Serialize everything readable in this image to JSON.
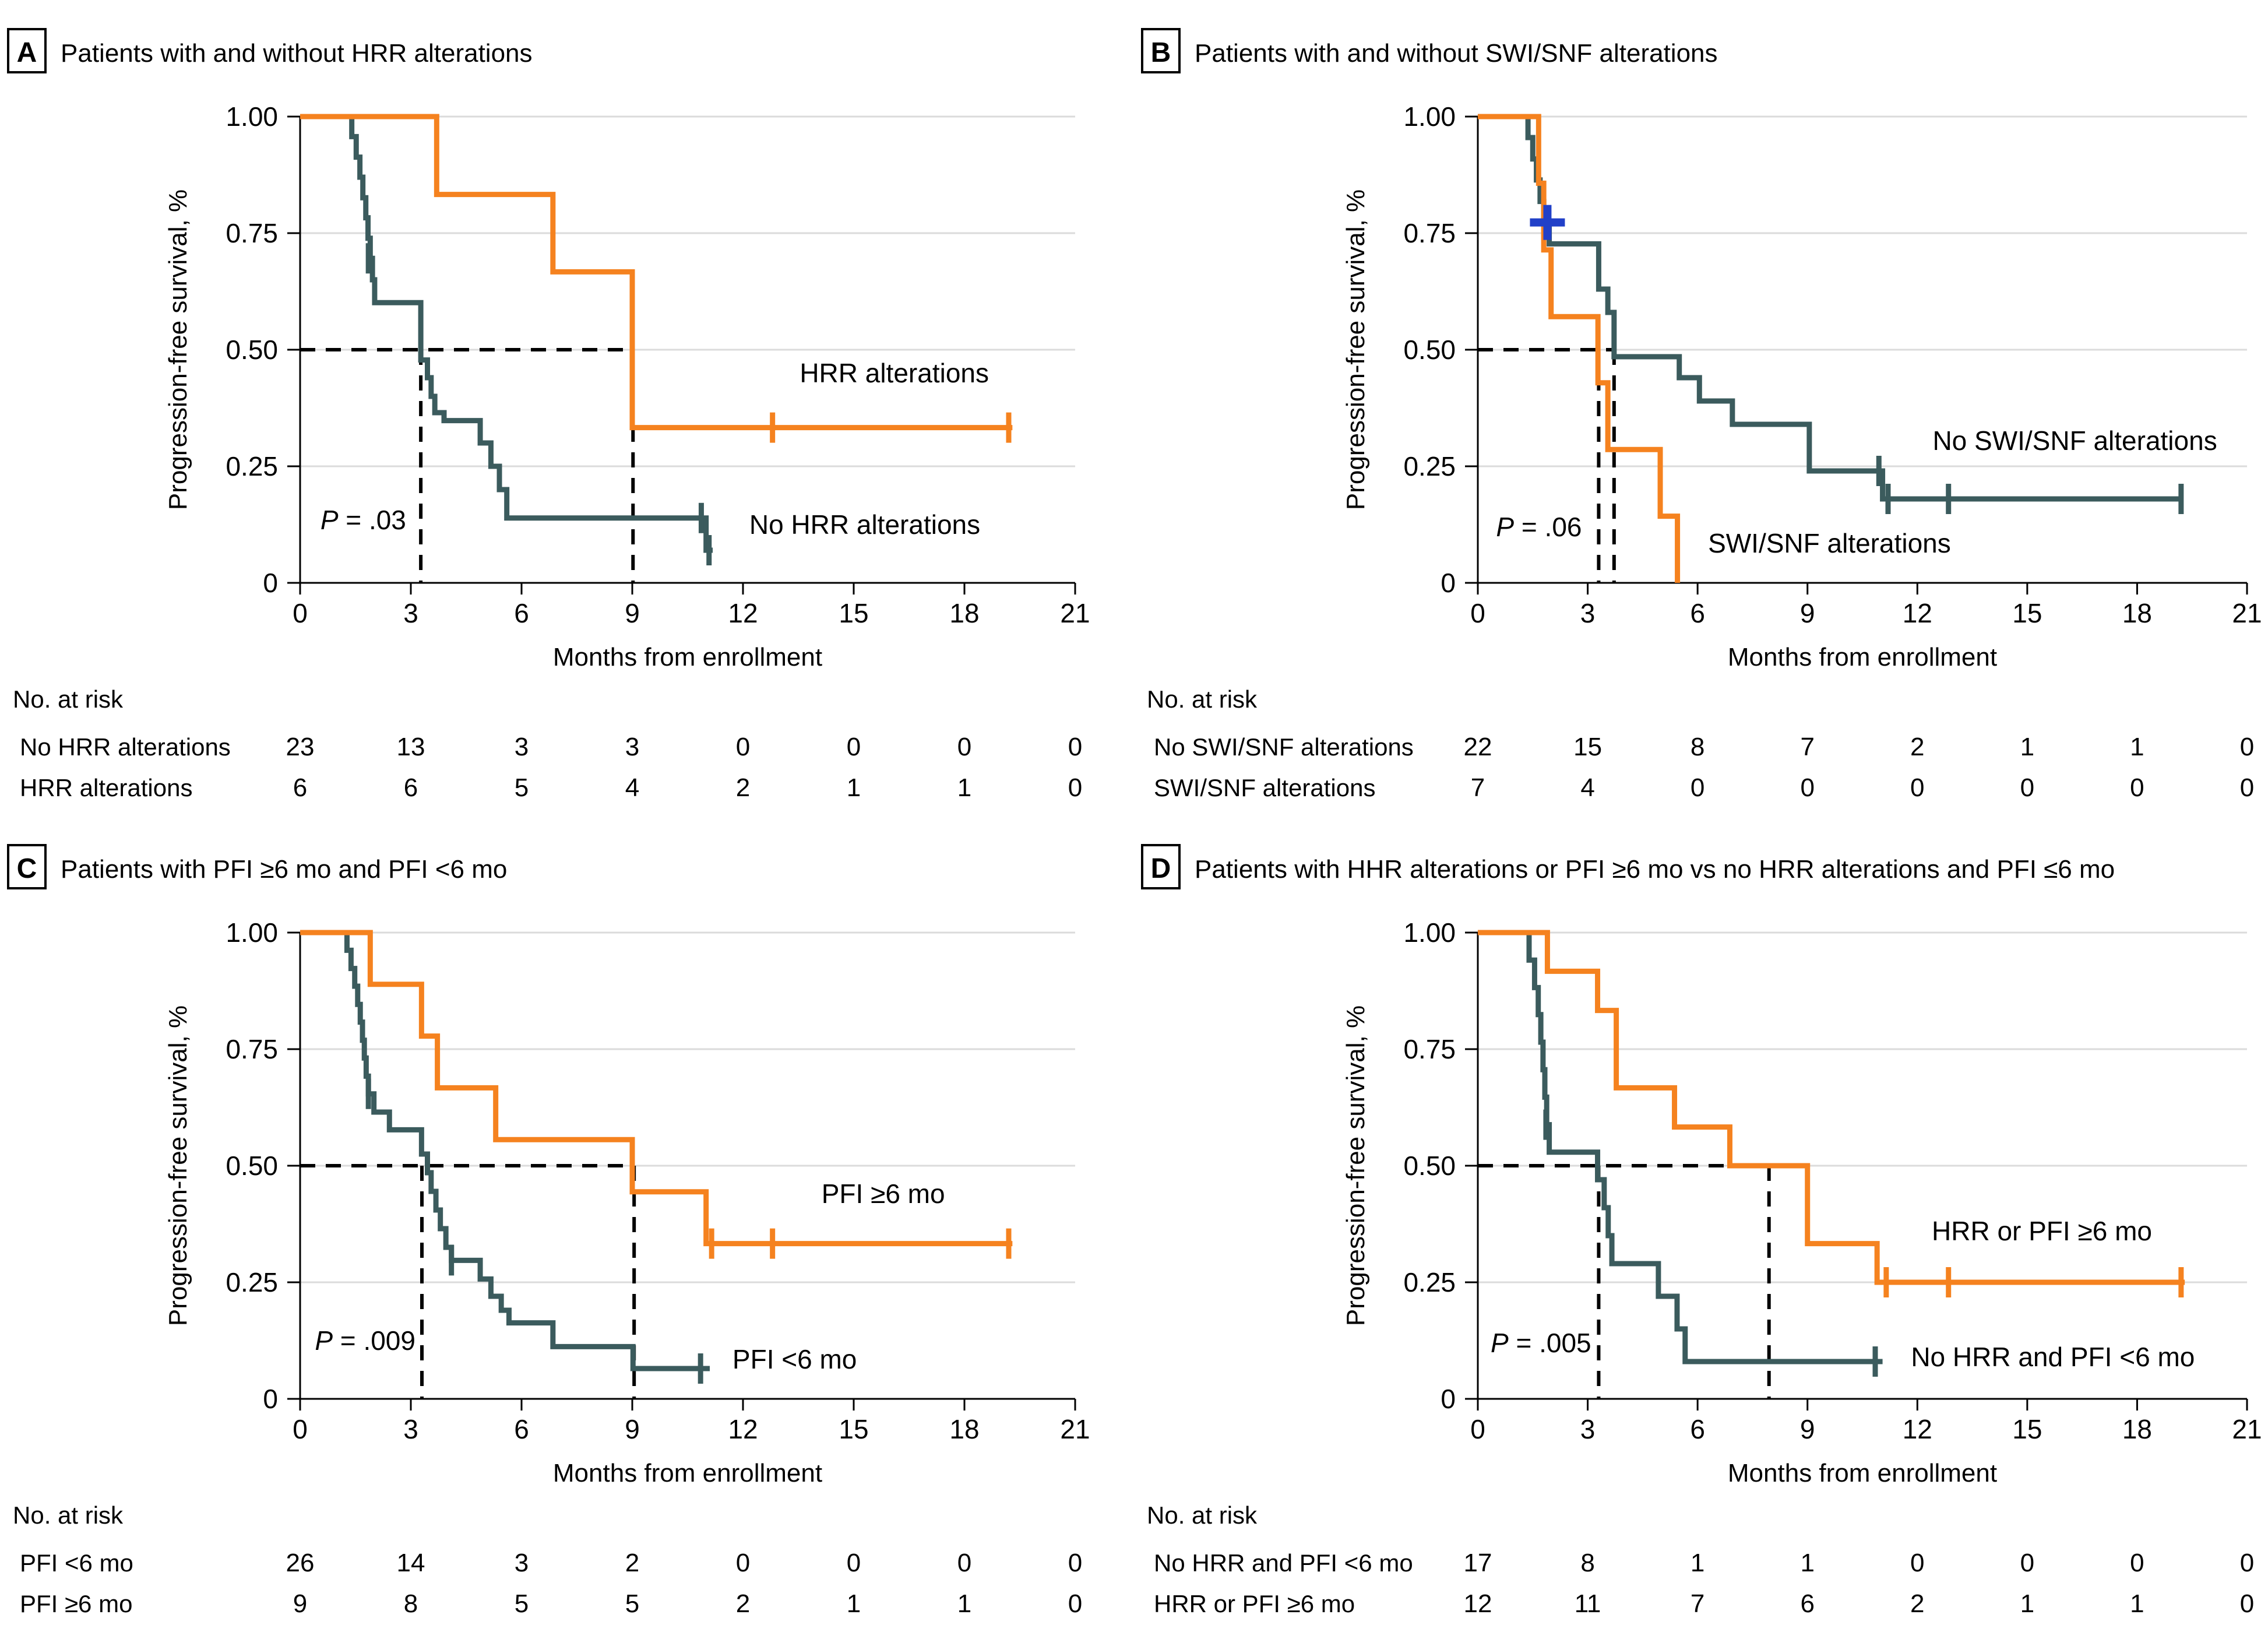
{
  "figure": {
    "background": "#ffffff",
    "colors": {
      "orange": "#F5821F",
      "teal": "#3B5B5D",
      "censor_blue": "#2140C8",
      "grid": "#DBDBDB",
      "axis": "#000000",
      "dashed": "#000000"
    },
    "axis": {
      "xlabel": "Months from enrollment",
      "ylabel": "Progression-free survival, %",
      "xticks": [
        0,
        3,
        6,
        9,
        12,
        15,
        18,
        21
      ],
      "yticks": [
        "0",
        "0.25",
        "0.50",
        "0.75",
        "1.00"
      ],
      "ytick_values": [
        0,
        0.25,
        0.5,
        0.75,
        1
      ],
      "xmax": 21
    },
    "risk_header": "No. at risk"
  },
  "chart_data": [
    {
      "type": "line",
      "panel_label": "A",
      "title": "Patients with and without HRR alterations",
      "p": {
        "symbol": "P",
        "rest": " = .03"
      },
      "p_pos": {
        "x": 0.55,
        "y": 0.115
      },
      "dashed": {
        "y": 0.5,
        "h_to": 9.02,
        "verticals": [
          3.27,
          9.02
        ]
      },
      "series": [
        {
          "name": "No HRR alterations",
          "color_key": "teal",
          "label_pos": {
            "x": 15.3,
            "y": 0.105
          },
          "steps": [
            [
              0,
              1
            ],
            [
              1.4,
              0.957
            ],
            [
              1.52,
              0.913
            ],
            [
              1.62,
              0.87
            ],
            [
              1.7,
              0.826
            ],
            [
              1.78,
              0.783
            ],
            [
              1.84,
              0.739
            ],
            [
              1.9,
              0.696
            ],
            [
              1.96,
              0.65
            ],
            [
              2.02,
              0.601
            ],
            [
              3.27,
              0.478
            ],
            [
              3.45,
              0.44
            ],
            [
              3.55,
              0.4
            ],
            [
              3.65,
              0.365
            ],
            [
              3.9,
              0.348
            ],
            [
              4.88,
              0.3
            ],
            [
              5.17,
              0.25
            ],
            [
              5.4,
              0.2
            ],
            [
              5.6,
              0.139
            ],
            [
              11.0,
              0.07
            ]
          ],
          "end_x": 11.18,
          "censors": [
            [
              1.85,
              0.696
            ],
            [
              10.87,
              0.139
            ],
            [
              11.08,
              0.07
            ]
          ]
        },
        {
          "name": "HRR alterations",
          "color_key": "orange",
          "label_pos": {
            "x": 16.1,
            "y": 0.43
          },
          "steps": [
            [
              0,
              1
            ],
            [
              3.7,
              0.833
            ],
            [
              6.85,
              0.667
            ],
            [
              9.0,
              0.333
            ]
          ],
          "end_x": 19.3,
          "censors": [
            [
              12.8,
              0.333
            ],
            [
              19.2,
              0.333
            ]
          ]
        }
      ],
      "risk_rows": [
        {
          "label": "No HRR alterations",
          "values": [
            23,
            13,
            3,
            3,
            0,
            0,
            0,
            0
          ]
        },
        {
          "label": "HRR alterations",
          "values": [
            6,
            6,
            5,
            4,
            2,
            1,
            1,
            0
          ]
        }
      ]
    },
    {
      "type": "line",
      "panel_label": "B",
      "title": "Patients with and without SWI/SNF alterations",
      "p": {
        "symbol": "P",
        "rest": " = .06"
      },
      "p_pos": {
        "x": 0.5,
        "y": 0.1
      },
      "dashed": {
        "y": 0.5,
        "h_to": 3.72,
        "verticals": [
          3.3,
          3.72
        ]
      },
      "series": [
        {
          "name": "No SWI/SNF alterations",
          "color_key": "teal",
          "label_pos": {
            "x": 16.3,
            "y": 0.285
          },
          "steps": [
            [
              0,
              1
            ],
            [
              1.37,
              0.955
            ],
            [
              1.5,
              0.909
            ],
            [
              1.6,
              0.864
            ],
            [
              1.7,
              0.818
            ],
            [
              1.8,
              0.773
            ],
            [
              1.95,
              0.727
            ],
            [
              3.3,
              0.63
            ],
            [
              3.55,
              0.58
            ],
            [
              3.72,
              0.485
            ],
            [
              5.5,
              0.44
            ],
            [
              6.05,
              0.39
            ],
            [
              6.95,
              0.34
            ],
            [
              9.05,
              0.24
            ],
            [
              11.05,
              0.18
            ]
          ],
          "end_x": 19.25,
          "censors": [
            [
              1.9,
              0.773,
              "blue"
            ],
            [
              10.95,
              0.24
            ],
            [
              11.2,
              0.18
            ],
            [
              12.85,
              0.18
            ],
            [
              19.2,
              0.18
            ]
          ]
        },
        {
          "name": "SWI/SNF alterations",
          "color_key": "orange",
          "label_pos": {
            "x": 9.6,
            "y": 0.065
          },
          "steps": [
            [
              0,
              1
            ],
            [
              1.66,
              0.857
            ],
            [
              1.8,
              0.714
            ],
            [
              2.0,
              0.571
            ],
            [
              3.28,
              0.429
            ],
            [
              3.55,
              0.286
            ],
            [
              4.98,
              0.143
            ],
            [
              5.45,
              0
            ]
          ],
          "end_x": 5.45,
          "censors": []
        }
      ],
      "risk_rows": [
        {
          "label": "No SWI/SNF alterations",
          "values": [
            22,
            15,
            8,
            7,
            2,
            1,
            1,
            0
          ]
        },
        {
          "label": "SWI/SNF alterations",
          "values": [
            7,
            4,
            0,
            0,
            0,
            0,
            0,
            0
          ]
        }
      ]
    },
    {
      "type": "line",
      "panel_label": "C",
      "title": "Patients with PFI ≥6 mo and PFI <6 mo",
      "p": {
        "symbol": "P",
        "rest": " = .009"
      },
      "p_pos": {
        "x": 0.4,
        "y": 0.105
      },
      "dashed": {
        "y": 0.5,
        "h_to": 9.05,
        "verticals": [
          3.3,
          9.05
        ]
      },
      "series": [
        {
          "name": "PFI <6 mo",
          "color_key": "teal",
          "label_pos": {
            "x": 13.4,
            "y": 0.065
          },
          "steps": [
            [
              0,
              1
            ],
            [
              1.27,
              0.962
            ],
            [
              1.38,
              0.923
            ],
            [
              1.48,
              0.885
            ],
            [
              1.56,
              0.846
            ],
            [
              1.63,
              0.808
            ],
            [
              1.69,
              0.769
            ],
            [
              1.74,
              0.731
            ],
            [
              1.79,
              0.692
            ],
            [
              1.85,
              0.654
            ],
            [
              2.0,
              0.615
            ],
            [
              2.42,
              0.577
            ],
            [
              3.29,
              0.525
            ],
            [
              3.45,
              0.485
            ],
            [
              3.55,
              0.445
            ],
            [
              3.68,
              0.405
            ],
            [
              3.8,
              0.365
            ],
            [
              3.95,
              0.325
            ],
            [
              4.1,
              0.297
            ],
            [
              4.88,
              0.257
            ],
            [
              5.17,
              0.22
            ],
            [
              5.45,
              0.19
            ],
            [
              5.66,
              0.163
            ],
            [
              6.85,
              0.112
            ],
            [
              9.02,
              0.065
            ]
          ],
          "end_x": 11.1,
          "censors": [
            [
              1.85,
              0.654
            ],
            [
              4.1,
              0.297
            ],
            [
              10.85,
              0.065
            ]
          ]
        },
        {
          "name": "PFI ≥6 mo",
          "color_key": "orange",
          "label_pos": {
            "x": 15.8,
            "y": 0.42
          },
          "steps": [
            [
              0,
              1
            ],
            [
              1.9,
              0.889
            ],
            [
              3.29,
              0.778
            ],
            [
              3.72,
              0.667
            ],
            [
              5.3,
              0.556
            ],
            [
              9.0,
              0.444
            ],
            [
              11.0,
              0.333
            ]
          ],
          "end_x": 19.3,
          "censors": [
            [
              11.15,
              0.333
            ],
            [
              12.8,
              0.333
            ],
            [
              19.2,
              0.333
            ]
          ]
        }
      ],
      "risk_rows": [
        {
          "label": "PFI <6 mo",
          "values": [
            26,
            14,
            3,
            2,
            0,
            0,
            0,
            0
          ]
        },
        {
          "label": "PFI ≥6 mo",
          "values": [
            9,
            8,
            5,
            5,
            2,
            1,
            1,
            0
          ]
        }
      ]
    },
    {
      "type": "line",
      "panel_label": "D",
      "title": "Patients with HHR alterations or PFI ≥6 mo vs no HRR alterations and PFI ≤6 mo",
      "p": {
        "symbol": "P",
        "rest": " = .005"
      },
      "p_pos": {
        "x": 0.35,
        "y": 0.1
      },
      "dashed": {
        "y": 0.5,
        "h_to": 7.95,
        "verticals": [
          3.3,
          7.95
        ]
      },
      "series": [
        {
          "name": "No HRR and PFI <6 mo",
          "color_key": "teal",
          "label_pos": {
            "x": 15.7,
            "y": 0.07
          },
          "steps": [
            [
              0,
              1
            ],
            [
              1.4,
              0.941
            ],
            [
              1.55,
              0.882
            ],
            [
              1.65,
              0.824
            ],
            [
              1.72,
              0.765
            ],
            [
              1.78,
              0.706
            ],
            [
              1.83,
              0.647
            ],
            [
              1.88,
              0.588
            ],
            [
              1.95,
              0.529
            ],
            [
              3.27,
              0.47
            ],
            [
              3.45,
              0.41
            ],
            [
              3.56,
              0.35
            ],
            [
              3.66,
              0.29
            ],
            [
              4.93,
              0.22
            ],
            [
              5.44,
              0.15
            ],
            [
              5.66,
              0.08
            ]
          ],
          "end_x": 11.05,
          "censors": [
            [
              1.86,
              0.588
            ],
            [
              10.85,
              0.08
            ]
          ]
        },
        {
          "name": "HRR or PFI ≥6 mo",
          "color_key": "orange",
          "label_pos": {
            "x": 15.4,
            "y": 0.34
          },
          "steps": [
            [
              0,
              1
            ],
            [
              1.9,
              0.917
            ],
            [
              3.27,
              0.833
            ],
            [
              3.78,
              0.667
            ],
            [
              5.37,
              0.583
            ],
            [
              6.88,
              0.5
            ],
            [
              9.0,
              0.333
            ],
            [
              10.9,
              0.25
            ]
          ],
          "end_x": 19.3,
          "censors": [
            [
              11.15,
              0.25
            ],
            [
              12.85,
              0.25
            ],
            [
              19.2,
              0.25
            ]
          ]
        }
      ],
      "risk_rows": [
        {
          "label": "No HRR and PFI <6 mo",
          "values": [
            17,
            8,
            1,
            1,
            0,
            0,
            0,
            0
          ]
        },
        {
          "label": "HRR or PFI ≥6 mo",
          "values": [
            12,
            11,
            7,
            6,
            2,
            1,
            1,
            0
          ]
        }
      ]
    }
  ]
}
